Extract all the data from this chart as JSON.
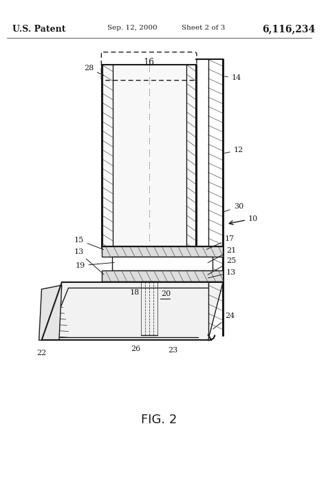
{
  "fig_label": "FIG. 2",
  "patent_left": "U.S. Patent",
  "patent_date": "Sep. 12, 2000",
  "patent_sheet": "Sheet 2 of 3",
  "patent_num": "6,116,234",
  "bg_color": "#ffffff",
  "line_color": "#1a1a1a"
}
